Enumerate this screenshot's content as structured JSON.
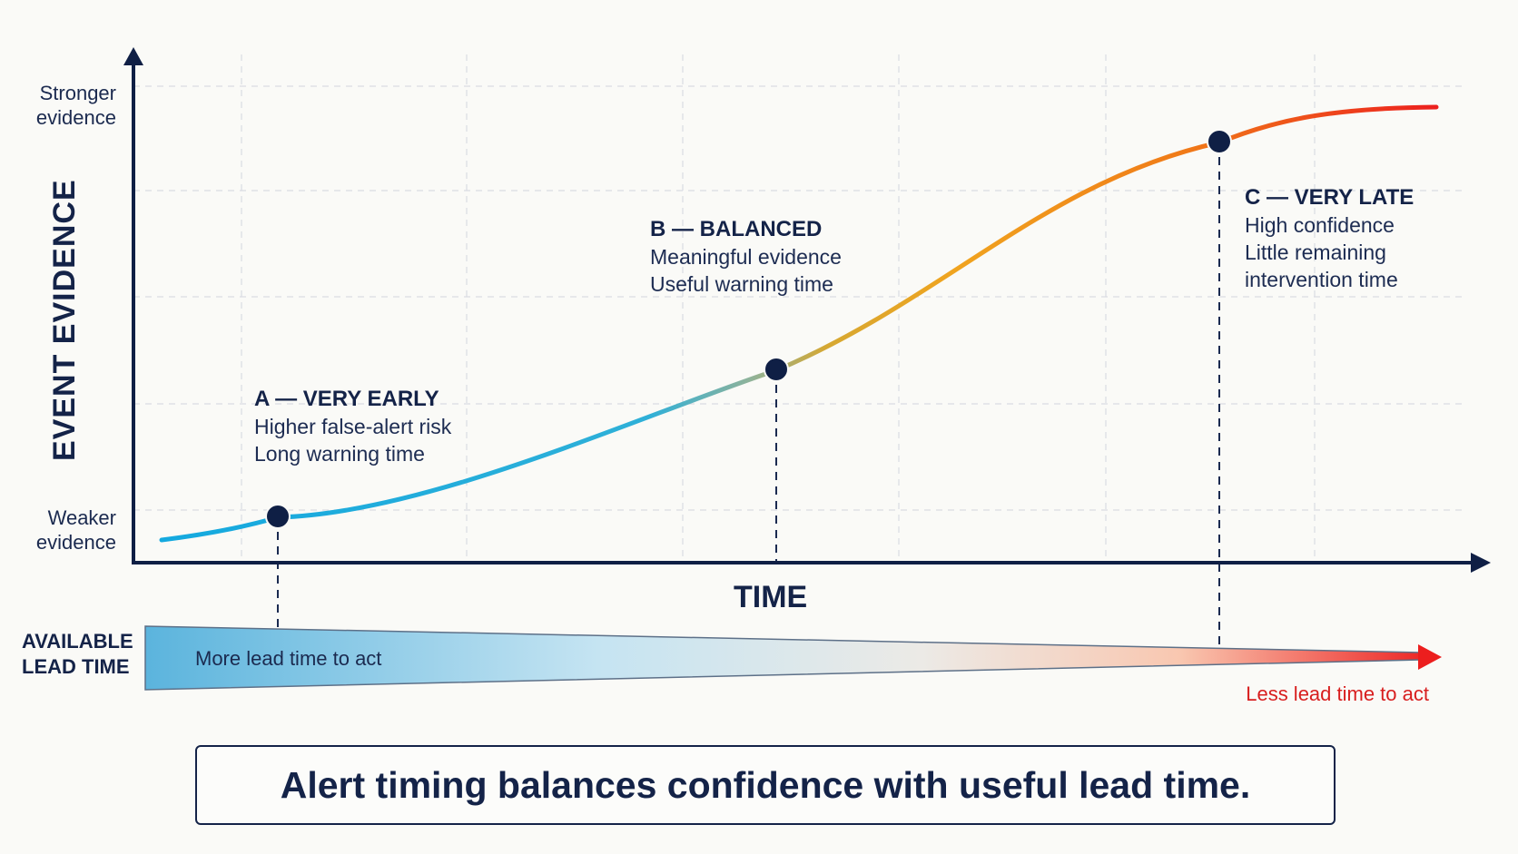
{
  "y_axis": {
    "title": "EVENT EVIDENCE",
    "top_label": [
      "Stronger",
      "evidence"
    ],
    "bottom_label": [
      "Weaker",
      "evidence"
    ]
  },
  "x_axis": {
    "title": "TIME"
  },
  "points": [
    {
      "id": "A",
      "title": "A — VERY EARLY",
      "lines": [
        "Higher false-alert risk",
        "Long warning time"
      ]
    },
    {
      "id": "B",
      "title": "B — BALANCED",
      "lines": [
        "Meaningful evidence",
        "Useful warning time"
      ]
    },
    {
      "id": "C",
      "title": "C — VERY LATE",
      "lines": [
        "High confidence",
        "Little remaining",
        "intervention time"
      ]
    }
  ],
  "lead_time": {
    "title": [
      "AVAILABLE",
      "LEAD TIME"
    ],
    "more_label": "More lead time to act",
    "less_label": "Less lead time to act"
  },
  "takeaway": "Alert timing balances confidence with useful lead time.",
  "colors": {
    "navy": "#142348",
    "curve_start": "#14a9df",
    "curve_mid": "#e8a326",
    "curve_end": "#ec1e1e",
    "lead_start": "#5bb4dd",
    "lead_end": "#ec1e1e",
    "less_label": "#d81e1e"
  }
}
